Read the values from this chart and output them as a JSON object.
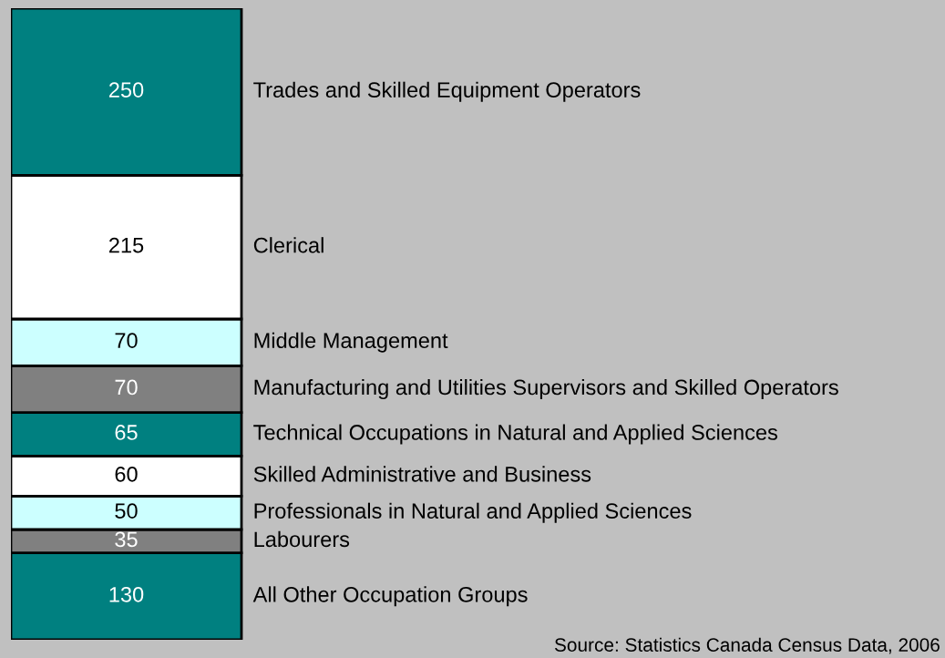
{
  "chart_data": {
    "type": "bar",
    "stacked": true,
    "data_labels": true,
    "tick_labels": false,
    "categories": [
      null
    ],
    "ylim": [
      0,
      945
    ],
    "series": [
      {
        "name": "All Other Occupation Groups",
        "color": "#008080",
        "values": [
          130
        ]
      },
      {
        "name": "Labourers",
        "color": "#808080",
        "values": [
          35
        ]
      },
      {
        "name": "Professionals in Natural and Applied Sciences",
        "color": "#ccffff",
        "values": [
          50
        ]
      },
      {
        "name": "Skilled Administrative and Business",
        "color": "#ffffff",
        "values": [
          60
        ]
      },
      {
        "name": "Technical Occupations in Natural and Applied Sciences",
        "color": "#008080",
        "values": [
          65
        ]
      },
      {
        "name": "Manufacturing and Utilities Supervisors and Skilled Operators",
        "color": "#808080",
        "values": [
          70
        ]
      },
      {
        "name": "Middle Management",
        "color": "#ccffff",
        "values": [
          70
        ]
      },
      {
        "name": "Clerical",
        "color": "#ffffff",
        "values": [
          215
        ]
      },
      {
        "name": "Trades and Skilled Equipment Operators",
        "color": "#008080",
        "values": [
          250
        ]
      }
    ],
    "annotations": [
      "Source: Statistics Canada Census Data, 2006"
    ]
  }
}
